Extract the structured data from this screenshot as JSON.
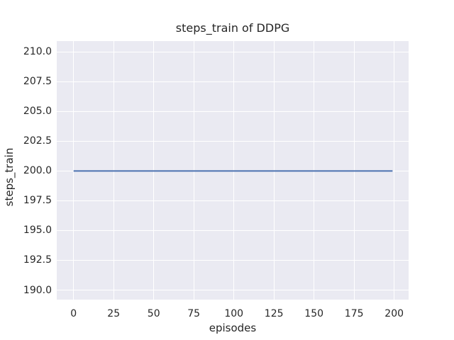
{
  "chart_data": {
    "type": "line",
    "title": "steps_train of DDPG",
    "xlabel": "episodes",
    "ylabel": "steps_train",
    "xlim": [
      -10.5,
      209
    ],
    "ylim": [
      189.2,
      210.9
    ],
    "x_ticks": {
      "values": [
        0,
        25,
        50,
        75,
        100,
        125,
        150,
        175,
        200
      ],
      "labels": [
        "0",
        "25",
        "50",
        "75",
        "100",
        "125",
        "150",
        "175",
        "200"
      ]
    },
    "y_ticks": {
      "values": [
        190,
        192.5,
        195,
        197.5,
        200,
        202.5,
        205,
        207.5,
        210
      ],
      "labels": [
        "190.0",
        "192.5",
        "195.0",
        "197.5",
        "200.0",
        "202.5",
        "205.0",
        "207.5",
        "210.0"
      ]
    },
    "grid": true,
    "legend": false,
    "colors": {
      "figure_background": "#ffffff",
      "plot_background": "#eaeaf2",
      "grid": "#ffffff",
      "line": "#4c72b0",
      "text": "#262626"
    },
    "series": [
      {
        "name": "steps_train",
        "color": "#4c72b0",
        "linewidth": 2,
        "x": [
          0,
          199
        ],
        "y": [
          200,
          200
        ]
      }
    ]
  }
}
